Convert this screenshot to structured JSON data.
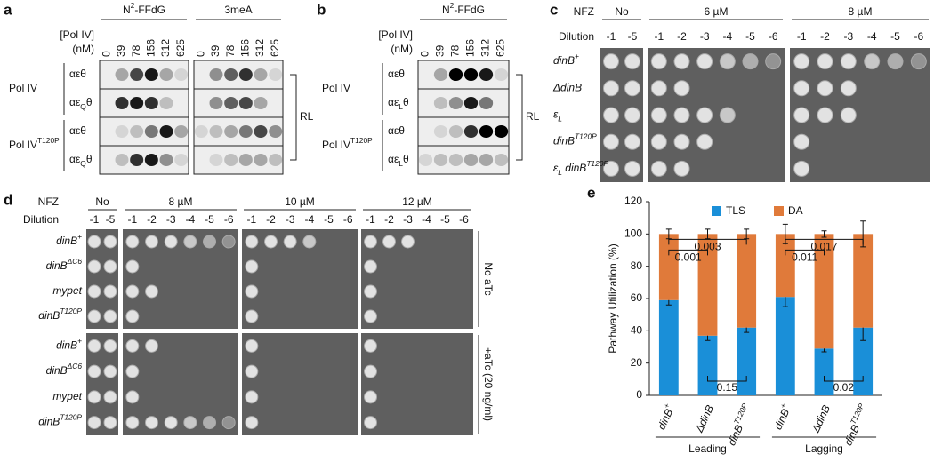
{
  "panels": {
    "a": {
      "label": "a",
      "headers": [
        [
          {
            "t": "N"
          },
          {
            "sup": "2"
          },
          {
            "t": "-FFdG"
          }
        ],
        "3meA"
      ],
      "conc_label": "[Pol IV]",
      "conc_unit": "(nM)",
      "lanes": [
        0,
        39,
        78,
        156,
        312,
        625
      ],
      "groups": [
        {
          "name": "Pol IV",
          "rows": [
            "αεθ",
            [
              {
                "t": "αε"
              },
              {
                "sub": "Q"
              },
              {
                "t": "θ"
              }
            ]
          ]
        },
        {
          "name": [
            {
              "t": "Pol IV"
            },
            {
              "sup": "T120P"
            }
          ],
          "rows": [
            "αεθ",
            [
              {
                "t": "αε"
              },
              {
                "sub": "Q"
              },
              {
                "t": "θ"
              }
            ]
          ]
        }
      ],
      "bracket": "RL"
    },
    "b": {
      "label": "b",
      "headers": [
        [
          {
            "t": "N"
          },
          {
            "sup": "2"
          },
          {
            "t": "-FFdG"
          }
        ]
      ],
      "conc_label": "[Pol IV]",
      "conc_unit": "(nM)",
      "lanes": [
        0,
        39,
        78,
        156,
        312,
        625
      ],
      "groups": [
        {
          "name": "Pol IV",
          "rows": [
            "αεθ",
            [
              {
                "t": "αε"
              },
              {
                "sub": "L"
              },
              {
                "t": "θ"
              }
            ]
          ]
        },
        {
          "name": [
            {
              "t": "Pol IV"
            },
            {
              "sup": "T120P"
            }
          ],
          "rows": [
            "αεθ",
            [
              {
                "t": "αε"
              },
              {
                "sub": "L"
              },
              {
                "t": "θ"
              }
            ]
          ]
        }
      ],
      "bracket": "RL"
    },
    "c": {
      "label": "c",
      "drug": "NFZ",
      "dilution": "Dilution",
      "conditions": [
        {
          "name": "No",
          "dilutions": [
            -1,
            -5
          ]
        },
        {
          "name": "6 µM",
          "dilutions": [
            -1,
            -2,
            -3,
            -4,
            -5,
            -6
          ]
        },
        {
          "name": "8 µM",
          "dilutions": [
            -1,
            -2,
            -3,
            -4,
            -5,
            -6
          ]
        }
      ],
      "blocks": [
        {
          "strains": [
            [
              {
                "t": "dinB"
              },
              {
                "sup": "+"
              }
            ],
            "ΔdinB",
            [
              {
                "t": "ε"
              },
              {
                "sub": "L"
              }
            ],
            [
              {
                "t": "dinB"
              },
              {
                "sup": "T120P"
              }
            ],
            [
              {
                "t": "ε"
              },
              {
                "sub": "L"
              },
              {
                "t": " dinB"
              },
              {
                "sup": "T120P"
              }
            ]
          ]
        }
      ]
    },
    "d": {
      "label": "d",
      "drug": "NFZ",
      "dilution": "Dilution",
      "conditions": [
        {
          "name": "No",
          "dilutions": [
            -1,
            -5
          ]
        },
        {
          "name": "8 µM",
          "dilutions": [
            -1,
            -2,
            -3,
            -4,
            -5,
            -6
          ]
        },
        {
          "name": "10 µM",
          "dilutions": [
            -1,
            -2,
            -3,
            -4,
            -5,
            -6
          ]
        },
        {
          "name": "12 µM",
          "dilutions": [
            -1,
            -2,
            -3,
            -4,
            -5,
            -6
          ]
        }
      ],
      "blocks": [
        {
          "label": "No aTc",
          "strains": [
            [
              {
                "t": "dinB"
              },
              {
                "sup": "+"
              }
            ],
            [
              {
                "t": "dinB"
              },
              {
                "sup": "ΔC6"
              }
            ],
            "mypet",
            [
              {
                "t": "dinB"
              },
              {
                "sup": "T120P"
              }
            ]
          ]
        },
        {
          "label": "+aTc (20 ng/ml)",
          "strains": [
            [
              {
                "t": "dinB"
              },
              {
                "sup": "+"
              }
            ],
            [
              {
                "t": "dinB"
              },
              {
                "sup": "ΔC6"
              }
            ],
            "mypet",
            [
              {
                "t": "dinB"
              },
              {
                "sup": "T120P"
              }
            ]
          ]
        }
      ]
    }
  },
  "chart_data": {
    "type": "bar",
    "stacked": true,
    "label": "e",
    "ylabel": "Pathway Utilization (%)",
    "categories": [
      [
        {
          "t": "dinB"
        },
        {
          "sup": "+"
        }
      ],
      "ΔdinB",
      [
        {
          "t": "dinB"
        },
        {
          "sup": "T120P"
        }
      ],
      [
        {
          "t": "dinB"
        },
        {
          "sup": "+"
        }
      ],
      "ΔdinB",
      [
        {
          "t": "dinB"
        },
        {
          "sup": "T120P"
        }
      ]
    ],
    "groups": [
      "Leading",
      "Lagging"
    ],
    "series": [
      {
        "name": "TLS",
        "color": "#1a8fd8",
        "values": [
          59,
          37,
          42,
          61,
          29,
          42
        ],
        "errors": [
          3,
          3,
          3,
          6,
          2,
          8
        ]
      },
      {
        "name": "DA",
        "color": "#e07a3a",
        "values": [
          41,
          63,
          58,
          39,
          71,
          58
        ],
        "errors": [
          3,
          3,
          3,
          6,
          2,
          8
        ]
      }
    ],
    "ylim": [
      0,
      120
    ],
    "yticks": [
      0,
      20,
      40,
      60,
      80,
      100,
      120
    ],
    "grid": false,
    "legend": "top",
    "annotations": [
      {
        "text": "0.001",
        "between": [
          0,
          1
        ],
        "side": "top"
      },
      {
        "text": "0.003",
        "between": [
          0,
          2
        ],
        "side": "top"
      },
      {
        "text": "0.011",
        "between": [
          3,
          4
        ],
        "side": "top"
      },
      {
        "text": "0.017",
        "between": [
          3,
          5
        ],
        "side": "top"
      },
      {
        "text": "0.15",
        "between": [
          1,
          2
        ],
        "side": "bottom"
      },
      {
        "text": "0.02",
        "between": [
          4,
          5
        ],
        "side": "bottom"
      }
    ]
  }
}
